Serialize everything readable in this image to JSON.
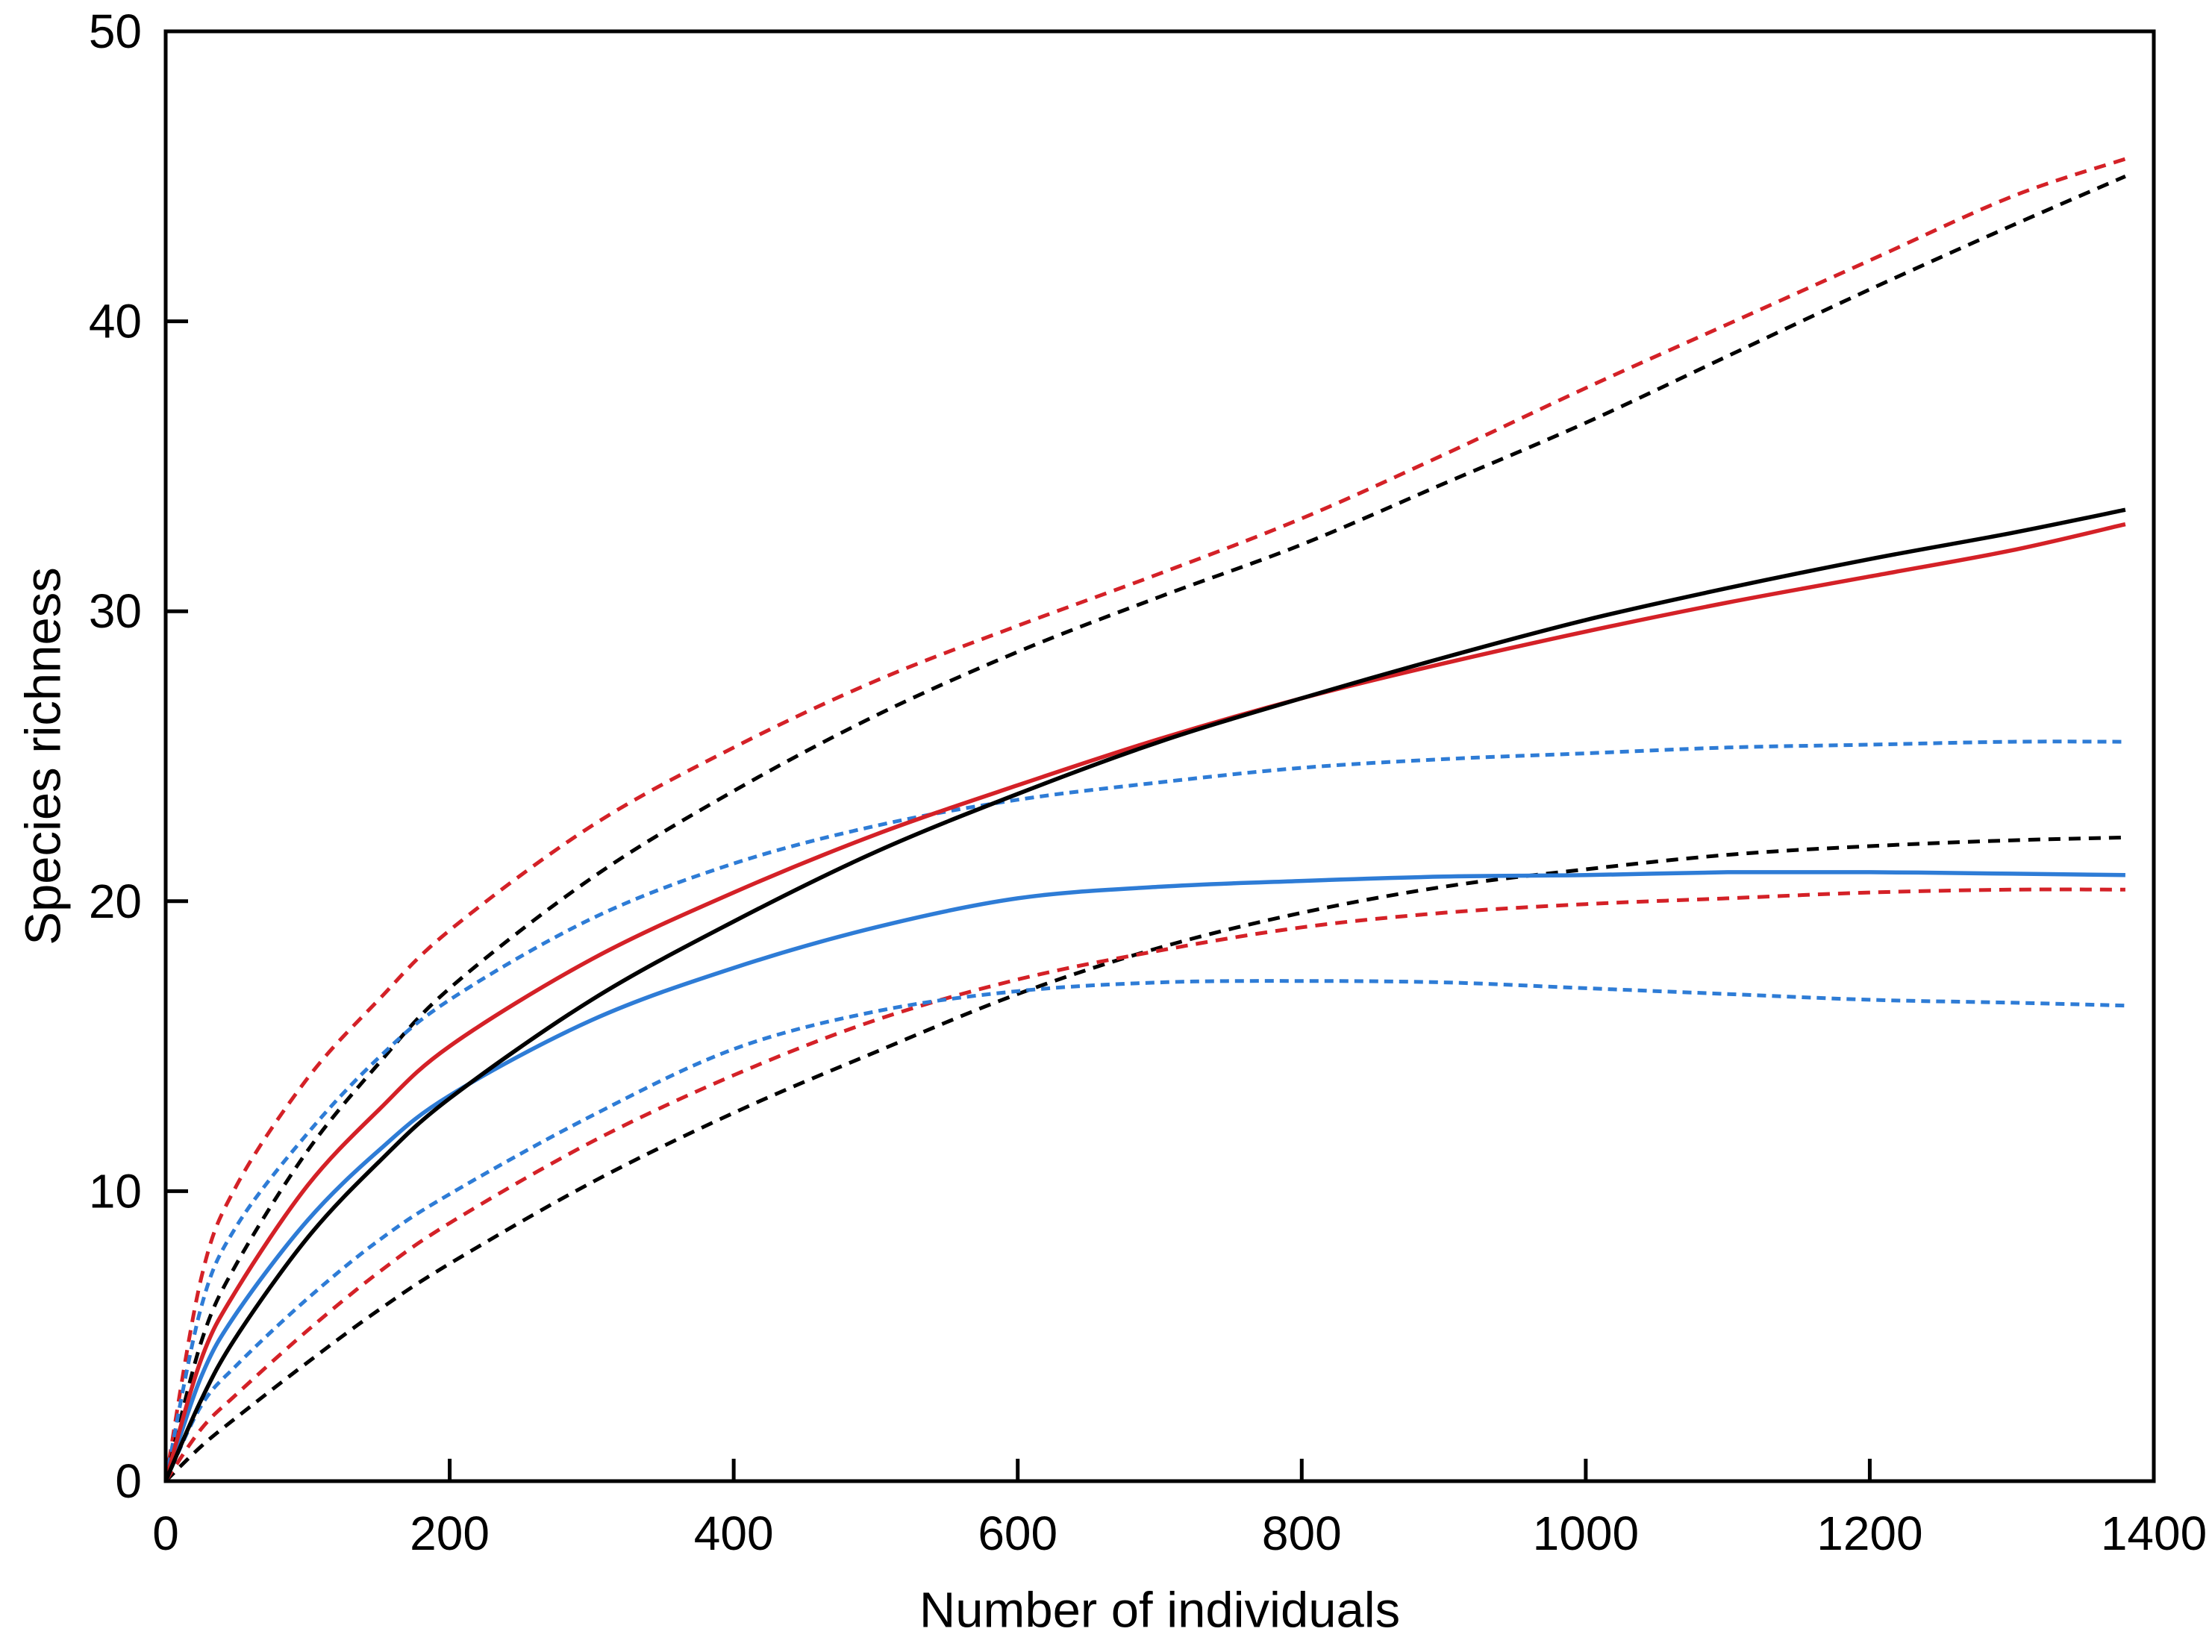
{
  "page": {
    "background": "#ffffff"
  },
  "chart_data": {
    "type": "line",
    "title": "",
    "xlabel": "Number of individuals",
    "ylabel": "Species richness",
    "xlim": [
      0,
      1400
    ],
    "ylim": [
      0,
      50
    ],
    "x_ticks": [
      0,
      200,
      400,
      600,
      800,
      1000,
      1200,
      1400
    ],
    "y_ticks": [
      0,
      10,
      20,
      30,
      40,
      50
    ],
    "grid": false,
    "legend": "none",
    "axis_color": "#000000",
    "x": [
      0,
      25,
      50,
      100,
      150,
      200,
      300,
      400,
      500,
      600,
      700,
      800,
      900,
      1000,
      1100,
      1200,
      1300,
      1380
    ],
    "series": [
      {
        "name": "red-upper-ci",
        "color": "#d42127",
        "line_style": "dashed",
        "values": [
          0,
          7.0,
          10.2,
          13.9,
          16.6,
          19.0,
          22.6,
          25.3,
          27.6,
          29.5,
          31.3,
          33.2,
          35.4,
          37.7,
          39.9,
          42.1,
          44.3,
          45.6
        ]
      },
      {
        "name": "black-upper-ci",
        "color": "#000000",
        "line_style": "dashed",
        "values": [
          0,
          4.8,
          7.5,
          11.4,
          14.4,
          17.0,
          20.8,
          23.8,
          26.4,
          28.6,
          30.5,
          32.3,
          34.4,
          36.5,
          38.8,
          41.1,
          43.3,
          45.0
        ]
      },
      {
        "name": "blue-upper-ci",
        "color": "#2e7cd6",
        "line_style": "dashed",
        "values": [
          0,
          6.0,
          8.8,
          12.0,
          14.6,
          16.6,
          19.4,
          21.3,
          22.6,
          23.5,
          24.1,
          24.6,
          24.9,
          25.1,
          25.3,
          25.4,
          25.5,
          25.5
        ]
      },
      {
        "name": "black-lower-ci",
        "color": "#000000",
        "line_style": "dashed",
        "values": [
          0,
          1.2,
          2.2,
          4.1,
          5.9,
          7.5,
          10.3,
          12.7,
          14.8,
          16.8,
          18.4,
          19.6,
          20.5,
          21.1,
          21.6,
          21.9,
          22.1,
          22.2
        ]
      },
      {
        "name": "red-lower-ci",
        "color": "#d42127",
        "line_style": "dashed",
        "values": [
          0,
          1.8,
          3.0,
          5.2,
          7.2,
          8.9,
          11.7,
          14.0,
          15.9,
          17.3,
          18.3,
          19.1,
          19.6,
          19.9,
          20.1,
          20.3,
          20.4,
          20.4
        ]
      },
      {
        "name": "blue-lower-ci",
        "color": "#2e7cd6",
        "line_style": "dashed",
        "values": [
          0,
          2.6,
          4.0,
          6.3,
          8.3,
          9.9,
          12.6,
          14.9,
          16.2,
          16.9,
          17.2,
          17.25,
          17.2,
          17.0,
          16.8,
          16.6,
          16.5,
          16.4
        ]
      },
      {
        "name": "blue-rarefaction",
        "color": "#2e7cd6",
        "line_style": "solid",
        "values": [
          0,
          3.6,
          5.8,
          9.0,
          11.4,
          13.3,
          15.9,
          17.7,
          19.1,
          20.1,
          20.5,
          20.7,
          20.85,
          20.9,
          21.0,
          21.0,
          20.95,
          20.9
        ]
      },
      {
        "name": "red-rarefaction",
        "color": "#d42127",
        "line_style": "solid",
        "values": [
          0,
          4.2,
          6.6,
          10.2,
          12.8,
          15.0,
          18.0,
          20.3,
          22.3,
          24.0,
          25.6,
          27.0,
          28.2,
          29.3,
          30.3,
          31.2,
          32.1,
          33.0
        ]
      },
      {
        "name": "black-rarefaction",
        "color": "#000000",
        "line_style": "solid",
        "values": [
          0,
          2.8,
          5.0,
          8.4,
          11.0,
          13.2,
          16.6,
          19.3,
          21.7,
          23.7,
          25.5,
          27.0,
          28.4,
          29.7,
          30.8,
          31.8,
          32.7,
          33.5
        ]
      }
    ]
  }
}
